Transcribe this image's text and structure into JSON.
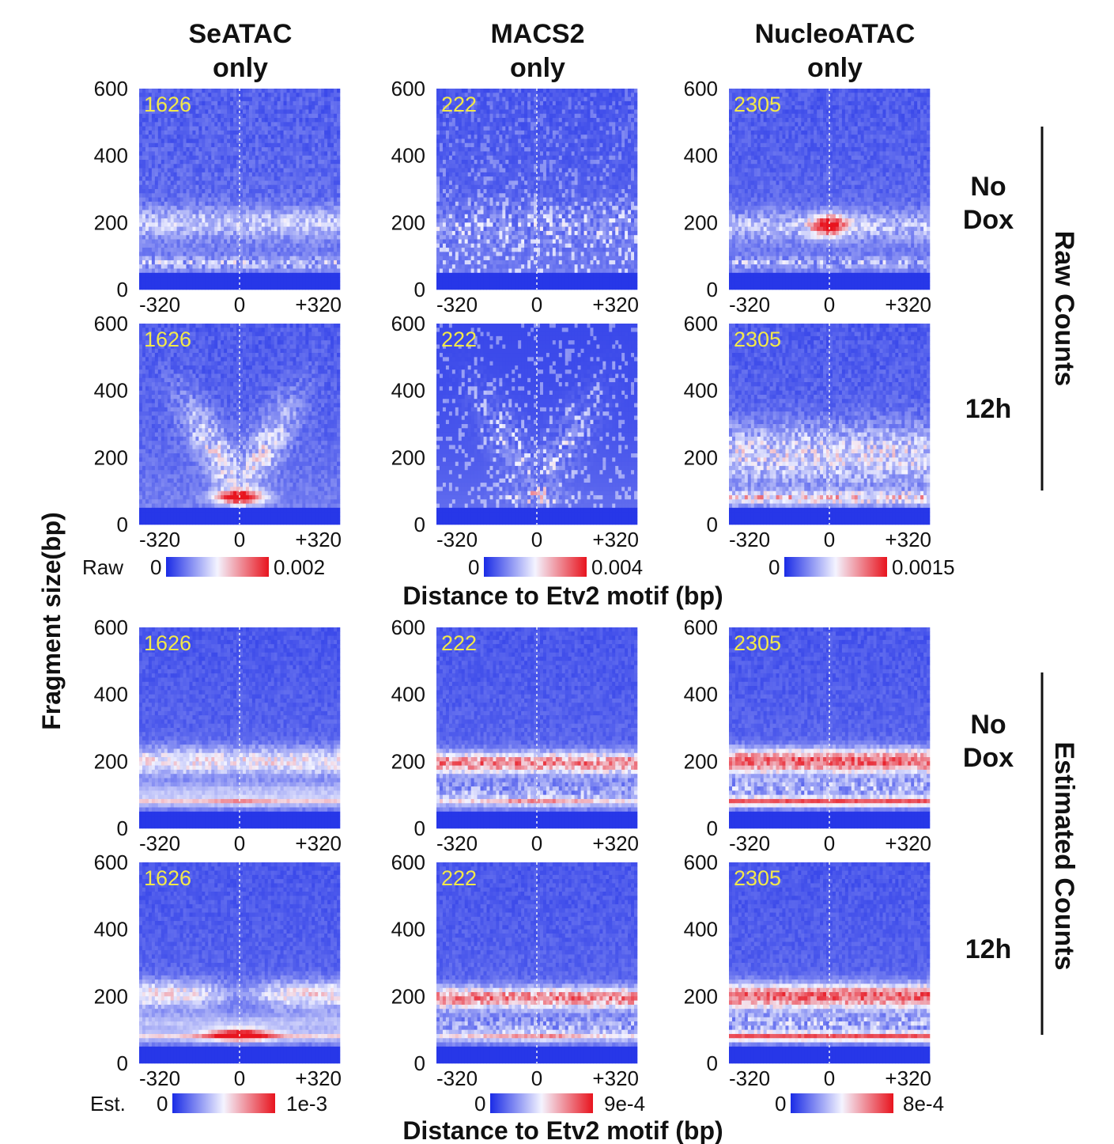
{
  "chart_data": {
    "type": "heatmap",
    "columns": [
      {
        "title_line1": "SeATAC",
        "title_line2": "only",
        "count": "1626"
      },
      {
        "title_line1": "MACS2",
        "title_line2": "only",
        "count": "222"
      },
      {
        "title_line1": "NucleoATAC",
        "title_line2": "only",
        "count": "2305"
      }
    ],
    "rows": [
      {
        "condition_line1": "No",
        "condition_line2": "Dox",
        "group": "Raw Counts"
      },
      {
        "condition_line1": "12h",
        "condition_line2": "",
        "group": "Raw Counts"
      },
      {
        "condition_line1": "No",
        "condition_line2": "Dox",
        "group": "Estimated Counts"
      },
      {
        "condition_line1": "12h",
        "condition_line2": "",
        "group": "Estimated Counts"
      }
    ],
    "y_ticks": [
      "600",
      "400",
      "200",
      "0"
    ],
    "x_ticks": [
      "-320",
      "0",
      "+320"
    ],
    "ylabel": "Fragment size(bp)",
    "xlabel": "Distance to Etv2 motif (bp)",
    "group_labels": {
      "raw": "Raw Counts",
      "estimated": "Estimated Counts"
    },
    "colorbars": {
      "raw": {
        "label": "Raw",
        "min": "0",
        "max": [
          "0.002",
          "0.004",
          "0.0015"
        ]
      },
      "estimated": {
        "label": "Est.",
        "min": "0",
        "max": [
          "1e-3",
          "9e-4",
          "8e-4"
        ]
      }
    },
    "colormap": {
      "low": "#1a2be6",
      "mid": "#f4f4ff",
      "high": "#e8141e"
    },
    "x_range": [
      -320,
      320
    ],
    "y_range": [
      0,
      600
    ],
    "panel_patterns": [
      [
        "flat_band",
        "noise",
        "nucleosome_center"
      ],
      [
        "v_shape",
        "v_shape_noisy",
        "diffuse_band"
      ],
      [
        "banded",
        "banded_red",
        "banded_red_strong"
      ],
      [
        "v_banded",
        "banded_red",
        "banded_red_strong"
      ]
    ]
  }
}
